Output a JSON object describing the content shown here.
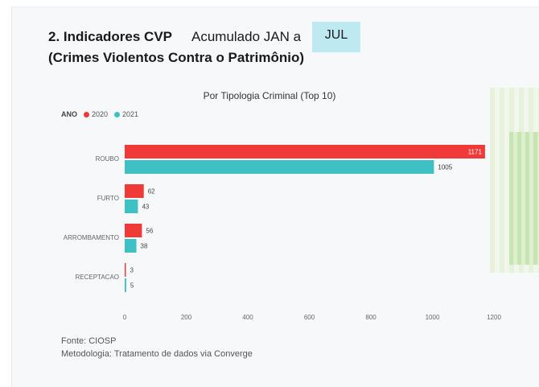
{
  "header": {
    "title": "2. Indicadores CVP",
    "period_label": "Acumulado  JAN a",
    "month": "JUL",
    "subtitle": "(Crimes Violentos Contra o Patrimônio)"
  },
  "colors": {
    "s2020": "#f03a37",
    "s2021": "#3ec1c5",
    "axis_text": "#666666"
  },
  "chart_data": {
    "type": "bar",
    "orientation": "horizontal",
    "title": "Por Tipologia Criminal (Top 10)",
    "legend_title": "ANO",
    "legend_position": "top-left",
    "categories": [
      "ROUBO",
      "FURTO",
      "ARROMBAMENTO",
      "RECEPTACAO"
    ],
    "series": [
      {
        "name": "2020",
        "values": [
          1171,
          62,
          56,
          3
        ]
      },
      {
        "name": "2021",
        "values": [
          1005,
          43,
          38,
          5
        ]
      }
    ],
    "xlim": [
      0,
      1200
    ],
    "xticks": [
      0,
      200,
      400,
      600,
      800,
      1000,
      1200
    ],
    "grid": false
  },
  "footer": {
    "source": "Fonte: CIOSP",
    "methodology": "Metodologia: Tratamento de dados via Converge"
  }
}
